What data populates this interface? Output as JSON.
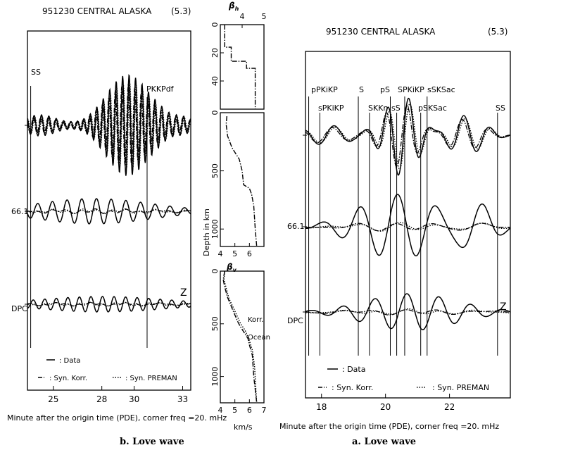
{
  "captions": {
    "left": "b. Love wave",
    "right": "a. Love wave"
  },
  "chart_data": [
    {
      "id": "left",
      "type": "line",
      "title": "951230 CENTRAL ALASKA",
      "magnitude": "(5.3)",
      "xlabel": "Minute after the origin time (PDE), corner freq   =20.   mHz",
      "xlim": [
        23.4,
        33.5
      ],
      "xticks": [
        25,
        28,
        30,
        33
      ],
      "phases": [
        {
          "label": "SS",
          "x": 23.6
        },
        {
          "label": "PKKPdf",
          "x": 30.8
        }
      ],
      "traces": [
        {
          "label": "",
          "component": "top"
        },
        {
          "label": "66.1",
          "component": "middle"
        },
        {
          "label": "DPC",
          "component": "bottom",
          "end_label": "Z"
        }
      ],
      "legend": [
        {
          "style": "solid",
          "label": ": Data"
        },
        {
          "style": "dashdot",
          "label": ": Syn. Korr."
        },
        {
          "style": "dotted",
          "label": ": Syn. PREMAN"
        }
      ],
      "series": [
        {
          "name": "Data",
          "style": "solid"
        },
        {
          "name": "Syn. Korr.",
          "style": "dashdot"
        },
        {
          "name": "Syn. PREMAN",
          "style": "dotted"
        }
      ]
    },
    {
      "id": "right",
      "type": "line",
      "title": "951230 CENTRAL ALASKA",
      "magnitude": "(5.3)",
      "xlabel": "Minute after the origin time (PDE), corner freq   =20.   mHz",
      "xlim": [
        17.5,
        23.9
      ],
      "xticks": [
        18,
        20,
        22
      ],
      "phases_top": [
        {
          "label": "pPKiKP",
          "x": 17.6
        },
        {
          "label": "S",
          "x": 19.15
        },
        {
          "label": "pS",
          "x": 20.15
        },
        {
          "label": "SPKiKP",
          "x": 20.6
        },
        {
          "label": "sSKSac",
          "x": 21.3
        }
      ],
      "phases_low": [
        {
          "label": "sPKiKP",
          "x": 17.95
        },
        {
          "label": "SKKn",
          "x": 19.5
        },
        {
          "label": "sS",
          "x": 20.35
        },
        {
          "label": "pSKSac",
          "x": 21.1
        },
        {
          "label": "SS",
          "x": 23.5
        }
      ],
      "traces": [
        {
          "label": "",
          "component": "top"
        },
        {
          "label": "66.1",
          "component": "middle"
        },
        {
          "label": "DPC",
          "component": "bottom",
          "end_label": "Z"
        }
      ],
      "legend": [
        {
          "style": "solid",
          "label": ": Data"
        },
        {
          "style": "dashdot",
          "label": ": Syn. Korr."
        },
        {
          "style": "dotted",
          "label": ": Syn. PREMAN"
        }
      ],
      "series": [
        {
          "name": "Data",
          "style": "solid"
        },
        {
          "name": "Syn. Korr.",
          "style": "dashdot"
        },
        {
          "name": "Syn. PREMAN",
          "style": "dotted"
        }
      ]
    },
    {
      "id": "profiles",
      "type": "line",
      "ylabel": "Depth in km",
      "xlabel": "km/s",
      "subplots": [
        {
          "label": "βh",
          "label_main": "β",
          "label_sub": "h",
          "xlim": [
            3,
            5
          ],
          "ylim": [
            0,
            60
          ],
          "xticks": [
            4,
            5
          ],
          "yticks": [
            0,
            20,
            40
          ],
          "series": [
            {
              "name": "Korr.",
              "style": "dashdot",
              "x": [
                3.2,
                3.2,
                3.5,
                3.5,
                4.2,
                4.2,
                4.6,
                4.6
              ],
              "y": [
                0,
                16,
                16,
                26,
                26,
                31,
                31,
                60
              ]
            }
          ]
        },
        {
          "label": "",
          "xlim": [
            4,
            7
          ],
          "ylim": [
            0,
            1150
          ],
          "xticks": [
            4,
            5,
            6
          ],
          "yticks": [
            0,
            500,
            1000
          ],
          "series": [
            {
              "name": "Korr.",
              "style": "dashdot",
              "x": [
                4.45,
                4.4,
                4.5,
                4.8,
                5.3,
                5.5,
                5.6,
                6.0,
                6.15,
                6.3,
                6.4,
                6.5
              ],
              "y": [
                30,
                100,
                200,
                300,
                400,
                500,
                620,
                650,
                700,
                800,
                1000,
                1150
              ]
            }
          ]
        },
        {
          "label": "βv",
          "label_main": "β",
          "label_sub": "v",
          "xlim": [
            4,
            7
          ],
          "ylim": [
            0,
            1250
          ],
          "xticks": [
            4,
            5,
            6,
            7
          ],
          "yticks": [
            0,
            500,
            1000
          ],
          "annotations": [
            "Korr.",
            "Ocean"
          ],
          "series": [
            {
              "name": "Korr.",
              "style": "dashdot",
              "x": [
                4.3,
                4.2,
                4.3,
                4.5,
                4.8,
                5.2,
                5.35,
                5.9,
                6.0,
                6.2,
                6.3,
                6.5
              ],
              "y": [
                0,
                80,
                150,
                250,
                350,
                480,
                520,
                640,
                700,
                800,
                1000,
                1250
              ]
            },
            {
              "name": "Ocean",
              "style": "dotted",
              "x": [
                4.3,
                4.25,
                4.4,
                4.6,
                5.0,
                5.4,
                5.7,
                6.0,
                6.2,
                6.35,
                6.5
              ],
              "y": [
                0,
                80,
                160,
                260,
                380,
                500,
                560,
                660,
                750,
                900,
                1250
              ]
            }
          ]
        }
      ]
    }
  ]
}
